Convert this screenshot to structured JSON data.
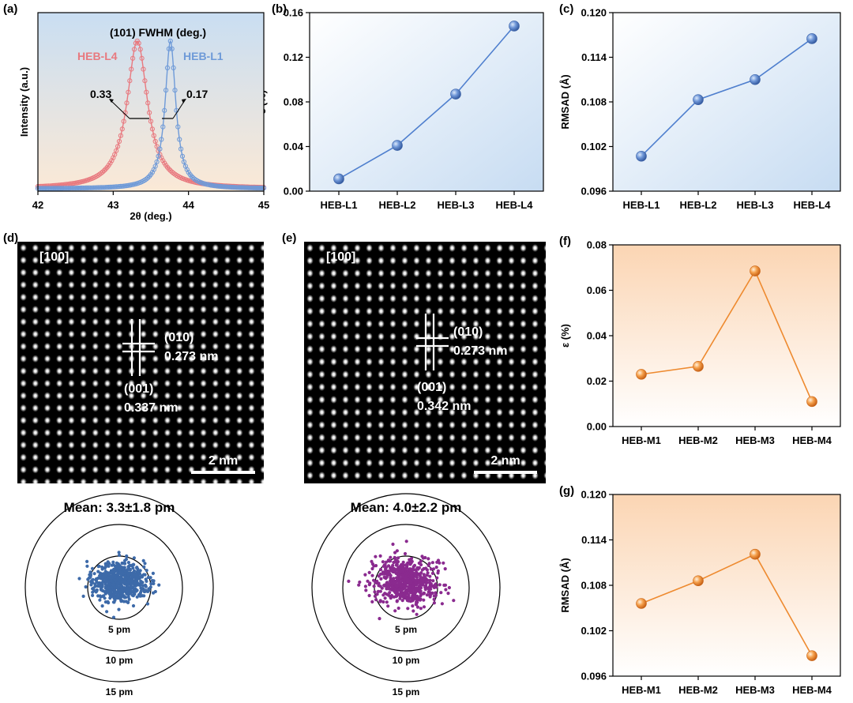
{
  "panels": [
    {
      "id": "a",
      "label": "(a)",
      "type": "xrd",
      "title": "(101) FWHM (deg.)",
      "xlabel": "2θ (deg.)",
      "ylabel": "Intensity (a.u.)",
      "xlim": [
        42,
        45
      ],
      "xticks": [
        42,
        43,
        44,
        45
      ],
      "series": [
        {
          "name": "HEB-L4",
          "color": "#e8797f",
          "center": 43.32,
          "fwhm": 0.33
        },
        {
          "name": "HEB-L1",
          "color": "#6e9ad8",
          "center": 43.76,
          "fwhm": 0.17
        }
      ],
      "annotations": [
        "0.33",
        "0.17"
      ]
    },
    {
      "id": "b",
      "label": "(b)",
      "type": "line",
      "theme": "blue",
      "ylabel": "ε (%)",
      "categories": [
        "HEB-L1",
        "HEB-L2",
        "HEB-L3",
        "HEB-L4"
      ],
      "values": [
        0.011,
        0.041,
        0.087,
        0.148
      ],
      "ylim": [
        0,
        0.16
      ],
      "yticks": [
        0,
        0.04,
        0.08,
        0.12,
        0.16
      ],
      "ydec": 2
    },
    {
      "id": "c",
      "label": "(c)",
      "type": "line",
      "theme": "blue",
      "ylabel": "RMSAD (Å)",
      "categories": [
        "HEB-L1",
        "HEB-L2",
        "HEB-L3",
        "HEB-L4"
      ],
      "values": [
        0.1007,
        0.1083,
        0.111,
        0.1165
      ],
      "ylim": [
        0.096,
        0.12
      ],
      "yticks": [
        0.096,
        0.102,
        0.108,
        0.114,
        0.12
      ],
      "ydec": 3
    },
    {
      "id": "f",
      "label": "(f)",
      "type": "line",
      "theme": "orange",
      "ylabel": "ε (%)",
      "categories": [
        "HEB-M1",
        "HEB-M2",
        "HEB-M3",
        "HEB-M4"
      ],
      "values": [
        0.023,
        0.0265,
        0.0685,
        0.011
      ],
      "ylim": [
        0,
        0.08
      ],
      "yticks": [
        0,
        0.02,
        0.04,
        0.06,
        0.08
      ],
      "ydec": 2
    },
    {
      "id": "g",
      "label": "(g)",
      "type": "line",
      "theme": "orange",
      "ylabel": "RMSAD (Å)",
      "categories": [
        "HEB-M1",
        "HEB-M2",
        "HEB-M3",
        "HEB-M4"
      ],
      "values": [
        0.1056,
        0.1086,
        0.1121,
        0.0987
      ],
      "ylim": [
        0.096,
        0.12
      ],
      "yticks": [
        0.096,
        0.102,
        0.108,
        0.114,
        0.12
      ],
      "ydec": 3
    },
    {
      "id": "d",
      "label": "(d)",
      "type": "stem",
      "zone": "[100]",
      "plane1": "(010)",
      "spacing1": "0.273 nm",
      "plane2": "(001)",
      "spacing2": "0.337 nm",
      "scalebar": "2 nm",
      "mean": "Mean: 3.3±1.8 pm",
      "rings": [
        "5 pm",
        "10 pm",
        "15 pm"
      ],
      "dot_color": "#3d6aa9",
      "spread_pm": 3.3
    },
    {
      "id": "e",
      "label": "(e)",
      "type": "stem",
      "zone": "[100]",
      "plane1": "(010)",
      "spacing1": "0.273 nm",
      "plane2": "(001)",
      "spacing2": "0.342 nm",
      "scalebar": "2 nm",
      "mean": "Mean: 4.0±2.2 pm",
      "rings": [
        "5 pm",
        "10 pm",
        "15 pm"
      ],
      "dot_color": "#8a2a8f",
      "spread_pm": 4.0
    }
  ],
  "chart_data": [
    {
      "type": "line",
      "panel": "(a)",
      "title": "(101) FWHM (deg.)",
      "xlabel": "2θ (deg.)",
      "ylabel": "Intensity (a.u.)",
      "xlim": [
        42,
        45
      ],
      "series": [
        {
          "name": "HEB-L4",
          "peak_2theta": 43.32,
          "fwhm": 0.33
        },
        {
          "name": "HEB-L1",
          "peak_2theta": 43.76,
          "fwhm": 0.17
        }
      ]
    },
    {
      "type": "line",
      "panel": "(b)",
      "xlabel": "",
      "ylabel": "ε (%)",
      "categories": [
        "HEB-L1",
        "HEB-L2",
        "HEB-L3",
        "HEB-L4"
      ],
      "values": [
        0.011,
        0.041,
        0.087,
        0.148
      ],
      "ylim": [
        0,
        0.16
      ]
    },
    {
      "type": "line",
      "panel": "(c)",
      "xlabel": "",
      "ylabel": "RMSAD (Å)",
      "categories": [
        "HEB-L1",
        "HEB-L2",
        "HEB-L3",
        "HEB-L4"
      ],
      "values": [
        0.1007,
        0.1083,
        0.111,
        0.1165
      ],
      "ylim": [
        0.096,
        0.12
      ]
    },
    {
      "type": "line",
      "panel": "(f)",
      "xlabel": "",
      "ylabel": "ε (%)",
      "categories": [
        "HEB-M1",
        "HEB-M2",
        "HEB-M3",
        "HEB-M4"
      ],
      "values": [
        0.023,
        0.0265,
        0.0685,
        0.011
      ],
      "ylim": [
        0,
        0.08
      ]
    },
    {
      "type": "line",
      "panel": "(g)",
      "xlabel": "",
      "ylabel": "RMSAD (Å)",
      "categories": [
        "HEB-M1",
        "HEB-M2",
        "HEB-M3",
        "HEB-M4"
      ],
      "values": [
        0.1056,
        0.1086,
        0.1121,
        0.0987
      ],
      "ylim": [
        0.096,
        0.12
      ]
    },
    {
      "type": "scatter",
      "panel": "(d)",
      "title": "Mean: 3.3±1.8 pm",
      "mean_pm": 3.3,
      "std_pm": 1.8,
      "rings_pm": [
        5,
        10,
        15
      ]
    },
    {
      "type": "scatter",
      "panel": "(e)",
      "title": "Mean: 4.0±2.2 pm",
      "mean_pm": 4.0,
      "std_pm": 2.2,
      "rings_pm": [
        5,
        10,
        15
      ]
    }
  ]
}
